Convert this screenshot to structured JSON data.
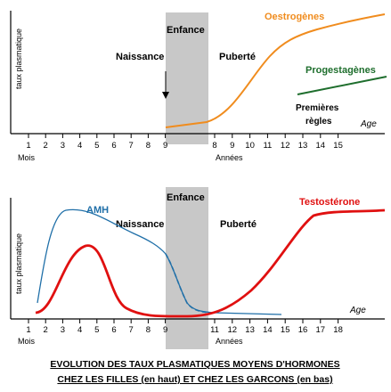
{
  "caption": {
    "line1": "EVOLUTION DES TAUX PLASMATIQUES MOYENS  D'HORMONES",
    "line2": "CHEZ LES FILLES (en haut) ET CHEZ LES GARCONS (en bas)"
  },
  "colors": {
    "oestrogenes": "#f08c1e",
    "progestagenes": "#1e6e2d",
    "amh": "#1f6fa8",
    "testosterone": "#e01010",
    "childhood_band": "#c8c8c8"
  },
  "chart_data": [
    {
      "type": "line",
      "ylabel": "taux plasmatique",
      "axis_end_label": "Age",
      "unit_left": "Mois",
      "unit_right": "Années",
      "ticks_months": [
        "1",
        "2",
        "3",
        "4",
        "5",
        "6",
        "7",
        "8",
        "9"
      ],
      "ticks_years": [
        "8",
        "9",
        "10",
        "11",
        "12",
        "13",
        "14",
        "15"
      ],
      "band_label": "Enfance",
      "annotations": {
        "birth": "Naissance",
        "puberty": "Puberté",
        "first_period_line1": "Premières",
        "first_period_line2": "règles"
      },
      "series": [
        {
          "name": "Oestrogènes",
          "x": [
            "9 mois",
            "8 ans",
            "9 ans",
            "10 ans",
            "11 ans",
            "12 ans",
            "13 ans",
            "14 ans",
            "15 ans"
          ],
          "values": [
            0.03,
            0.07,
            0.3,
            0.55,
            0.68,
            0.75,
            0.8,
            0.84,
            0.88
          ]
        },
        {
          "name": "Progestagènes",
          "x": [
            "12 ans",
            "15 ans"
          ],
          "values": [
            0.4,
            0.56
          ]
        }
      ]
    },
    {
      "type": "line",
      "ylabel": "taux plasmatique",
      "axis_end_label": "Age",
      "unit_left": "Mois",
      "unit_right": "Années",
      "ticks_months": [
        "1",
        "2",
        "3",
        "4",
        "5",
        "6",
        "7",
        "8",
        "9"
      ],
      "ticks_years": [
        "11",
        "12",
        "13",
        "14",
        "15",
        "16",
        "17",
        "18"
      ],
      "band_label": "Enfance",
      "annotations": {
        "birth": "Naissance",
        "puberty": "Puberté"
      },
      "series": [
        {
          "name": "AMH",
          "x": [
            "1",
            "2",
            "3",
            "4",
            "5",
            "6",
            "7",
            "8",
            "9",
            "11",
            "12",
            "13",
            "14",
            "15"
          ],
          "values": [
            0.15,
            0.7,
            0.93,
            0.9,
            0.82,
            0.75,
            0.67,
            0.6,
            0.53,
            0.06,
            0.04,
            0.03,
            0.03,
            0.03
          ]
        },
        {
          "name": "Testostérone",
          "x": [
            "1",
            "2",
            "3",
            "4",
            "5",
            "6",
            "7",
            "8",
            "9",
            "11",
            "12",
            "13",
            "14",
            "15",
            "16",
            "17",
            "18"
          ],
          "values": [
            0.05,
            0.2,
            0.6,
            0.66,
            0.4,
            0.05,
            0.02,
            0.01,
            0.01,
            0.08,
            0.2,
            0.42,
            0.65,
            0.86,
            0.92,
            0.93,
            0.93
          ]
        }
      ]
    }
  ]
}
